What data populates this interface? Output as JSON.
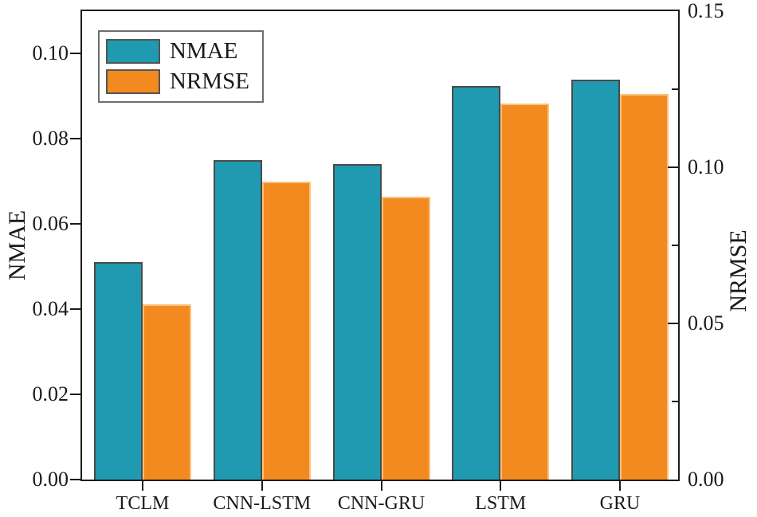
{
  "chart_data": {
    "type": "bar",
    "title": "",
    "categories": [
      "TCLM",
      "CNN-LSTM",
      "CNN-GRU",
      "LSTM",
      "GRU"
    ],
    "series": [
      {
        "name": "NMAE",
        "axis": "left",
        "color": "#1f9ab0",
        "edge_color": "#4a4a4a",
        "values": [
          0.051,
          0.075,
          0.074,
          0.0925,
          0.094
        ]
      },
      {
        "name": "NRMSE",
        "axis": "right",
        "color": "#f38a1f",
        "edge_color": "#f9c27d",
        "values": [
          0.056,
          0.0955,
          0.0905,
          0.1205,
          0.1235
        ]
      }
    ],
    "left_axis": {
      "label": "NMAE",
      "min": 0,
      "max": 0.11,
      "ticks": [
        {
          "value": 0.0,
          "label": "0.00"
        },
        {
          "value": 0.02,
          "label": "0.02"
        },
        {
          "value": 0.04,
          "label": "0.04"
        },
        {
          "value": 0.06,
          "label": "0.06"
        },
        {
          "value": 0.08,
          "label": "0.08"
        },
        {
          "value": 0.1,
          "label": "0.10"
        }
      ]
    },
    "right_axis": {
      "label": "NRMSE",
      "min": 0,
      "max": 0.15,
      "ticks": [
        {
          "value": 0.0,
          "label": "0.00",
          "draw_tick": false
        },
        {
          "value": 0.05,
          "label": "0.05",
          "draw_tick": true
        },
        {
          "value": 0.1,
          "label": "0.10",
          "draw_tick": true
        },
        {
          "value": 0.15,
          "label": "0.15",
          "draw_tick": false
        }
      ],
      "minor_ticks": [
        0.025,
        0.075,
        0.125
      ]
    },
    "legend": {
      "position": "top-left",
      "entries": [
        "NMAE",
        "NRMSE"
      ]
    },
    "grid": false
  }
}
